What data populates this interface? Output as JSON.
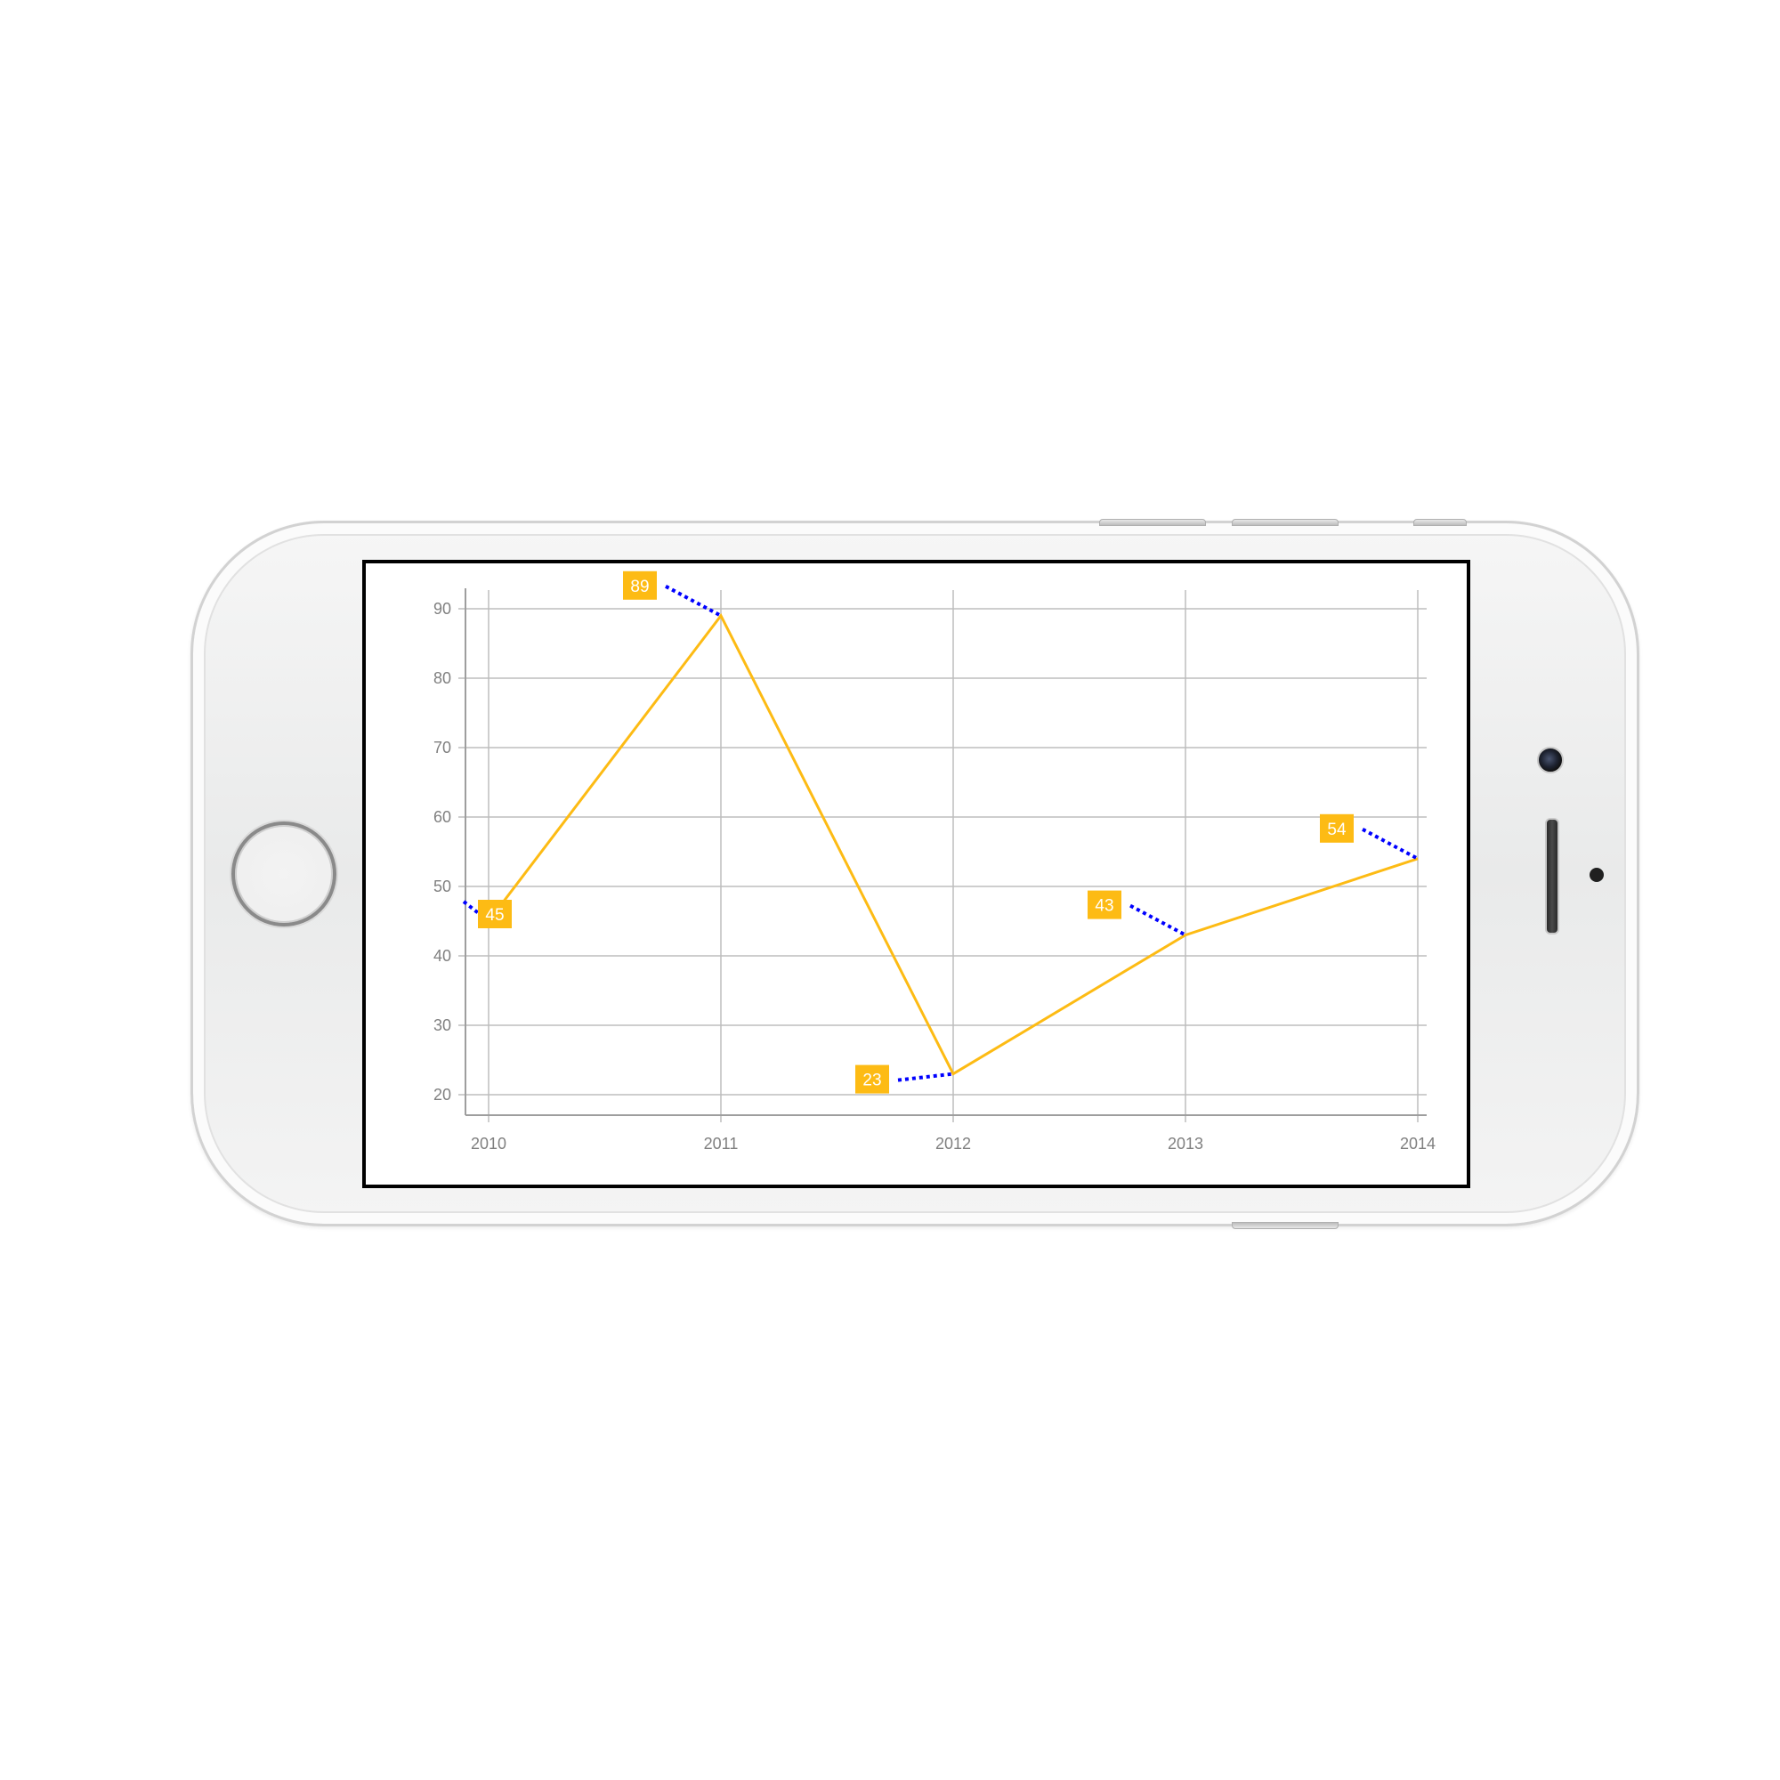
{
  "chart_data": {
    "type": "line",
    "categories": [
      "2010",
      "2011",
      "2012",
      "2013",
      "2014"
    ],
    "values": [
      45,
      89,
      23,
      43,
      54
    ],
    "ylim": [
      20,
      90
    ],
    "y_ticks": [
      "20",
      "30",
      "40",
      "50",
      "60",
      "70",
      "80",
      "90"
    ],
    "x_ticks": [
      "2010",
      "2011",
      "2012",
      "2013",
      "2014"
    ],
    "title": "",
    "xlabel": "",
    "ylabel": "",
    "grid": true,
    "data_labels": [
      "45",
      "89",
      "23",
      "43",
      "54"
    ],
    "colors": {
      "line": "#FDBB14",
      "label_background": "#FDBB14",
      "connector": "#0000FF",
      "grid": "#BDBDBD",
      "axis": "#9E9E9E",
      "tick_text": "#808080"
    }
  }
}
